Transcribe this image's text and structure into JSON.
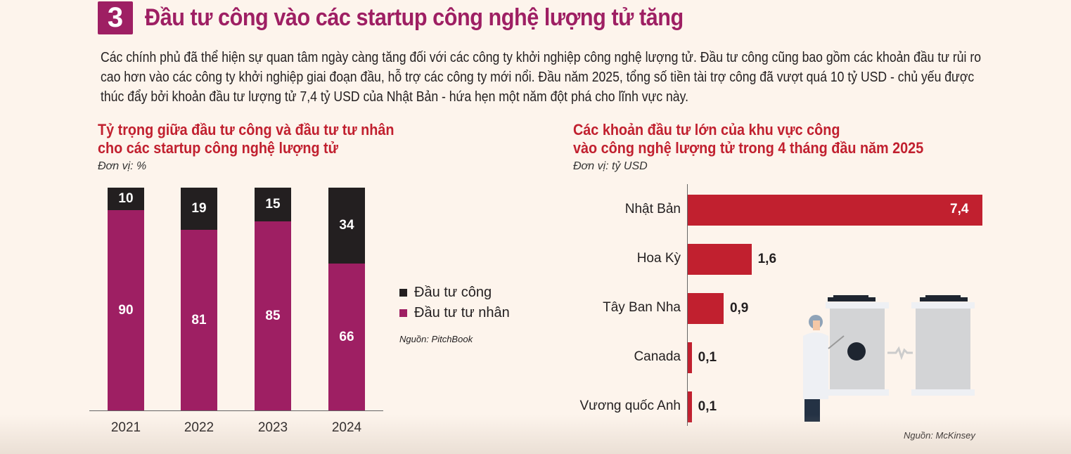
{
  "header": {
    "number": "3",
    "title": "Đầu tư công vào các startup công nghệ lượng tử tăng"
  },
  "intro": "Các chính phủ đã thể hiện sự quan tâm ngày càng tăng đối với các công ty khởi nghiệp công nghệ lượng tử. Đầu tư công cũng bao gồm các khoản đầu tư rủi ro cao hơn vào các công ty khởi nghiệp giai đoạn đầu, hỗ trợ các công ty mới nổi. Đầu năm 2025, tổng số tiền tài trợ công đã vượt quá 10 tỷ USD - chủ yếu được thúc đẩy bởi khoản đầu tư lượng tử 7,4 tỷ USD của Nhật Bản - hứa hẹn một năm đột phá cho lĩnh vực này.",
  "colors": {
    "accent": "#9e1f63",
    "public": "#231f20",
    "private": "#9e1f63",
    "bar": "#c1202f",
    "bg": "#fdf4ec"
  },
  "chart_data": [
    {
      "type": "bar",
      "stacked": true,
      "title_line1": "Tỷ trọng giữa đầu tư công và đầu tư tư nhân",
      "title_line2": "cho các startup công nghệ lượng tử",
      "unit": "Đơn vị: %",
      "categories": [
        "2021",
        "2022",
        "2023",
        "2024"
      ],
      "series": [
        {
          "name": "Đầu tư công",
          "values": [
            10,
            19,
            15,
            34
          ]
        },
        {
          "name": "Đầu tư tư nhân",
          "values": [
            90,
            81,
            85,
            66
          ]
        }
      ],
      "ylim": [
        0,
        100
      ],
      "legend": "right",
      "source": "Nguồn: PitchBook"
    },
    {
      "type": "bar",
      "orientation": "horizontal",
      "title_line1": "Các khoản đầu tư lớn của khu vực công",
      "title_line2": "vào công nghệ lượng tử trong 4 tháng đầu năm 2025",
      "unit": "Đơn vị: tỷ USD",
      "categories": [
        "Nhật Bản",
        "Hoa Kỳ",
        "Tây Ban Nha",
        "Canada",
        "Vương quốc Anh"
      ],
      "values": [
        7.4,
        1.6,
        0.9,
        0.1,
        0.1
      ],
      "labels": [
        "7,4",
        "1,6",
        "0,9",
        "0,1",
        "0,1"
      ],
      "xlim": [
        0,
        7.4
      ],
      "source": "Nguồn: McKinsey"
    }
  ]
}
